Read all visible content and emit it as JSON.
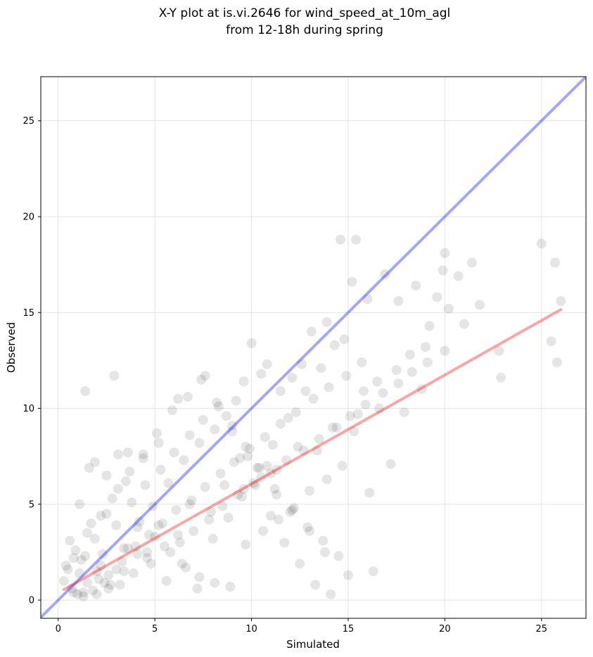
{
  "chart_data": {
    "type": "scatter",
    "title_line1": "X-Y plot at is.vi.2646 for wind_speed_at_10m_agl",
    "title_line2": "from 12-18h during spring",
    "xlabel": "Simulated",
    "ylabel": "Observed",
    "xlim": [
      -0.9,
      27.3
    ],
    "ylim": [
      -0.95,
      27.3
    ],
    "xticks": [
      0,
      5,
      10,
      15,
      20,
      25
    ],
    "yticks": [
      0,
      5,
      10,
      15,
      20,
      25
    ],
    "grid": true,
    "colors": {
      "points": "#000000",
      "identity_line": "#0000ee",
      "fit_line": "#ee0000"
    },
    "identity_line": {
      "x": [
        -0.9,
        27.3
      ],
      "y": [
        -0.9,
        27.3
      ]
    },
    "fit_line": {
      "x": [
        0.3,
        26.0
      ],
      "y": [
        0.55,
        15.15
      ]
    },
    "points": {
      "x": [
        1.4,
        2.9,
        14.6,
        15.4,
        25.0,
        25.7,
        26.0,
        25.5,
        25.8,
        20.0,
        19.9,
        20.7,
        21.4,
        21.0,
        15.2,
        16.0,
        16.9,
        17.6,
        18.5,
        19.6,
        19.2,
        19.0,
        20.2,
        22.8,
        22.9,
        21.8,
        18.2,
        17.5,
        16.5,
        15.8,
        13.9,
        14.8,
        13.1,
        12.6,
        12.1,
        11.5,
        10.5,
        10.8,
        9.6,
        9.2,
        10.0,
        7.6,
        6.2,
        5.2,
        4.4,
        3.6,
        3.1,
        2.5,
        1.9,
        1.6,
        1.1,
        0.8,
        0.5,
        0.3,
        0.7,
        1.3,
        2.1,
        2.7,
        3.4,
        4.1,
        4.8,
        5.5,
        6.3,
        7.0,
        7.8,
        8.5,
        9.3,
        10.1,
        11.0,
        11.8,
        12.7,
        13.5,
        14.4,
        15.1,
        15.9,
        16.8,
        17.6,
        18.3,
        19.1,
        20.0,
        0.4,
        0.9,
        1.5,
        2.2,
        2.8,
        3.5,
        4.2,
        5.0,
        5.8,
        6.6,
        7.3,
        8.1,
        8.9,
        9.7,
        10.6,
        11.4,
        12.2,
        13.0,
        13.9,
        14.7,
        1.0,
        1.8,
        2.6,
        3.3,
        4.0,
        4.7,
        5.4,
        6.1,
        6.9,
        7.6,
        8.4,
        9.1,
        9.9,
        10.7,
        11.5,
        12.3,
        13.2,
        14.0,
        14.9,
        15.7,
        1.2,
        2.0,
        2.4,
        3.0,
        3.8,
        4.5,
        5.3,
        6.0,
        6.8,
        7.5,
        8.3,
        9.0,
        9.8,
        10.5,
        11.3,
        12.0,
        12.9,
        13.7,
        14.5,
        16.3,
        0.6,
        1.7,
        2.3,
        3.2,
        3.9,
        4.6,
        5.6,
        6.4,
        7.2,
        8.0,
        8.8,
        9.5,
        10.3,
        11.1,
        11.9,
        12.8,
        13.6,
        14.3,
        15.5,
        17.2,
        1.1,
        1.4,
        1.9,
        2.5,
        3.1,
        3.7,
        4.4,
        5.1,
        5.9,
        6.7,
        7.4,
        8.2,
        9.0,
        9.7,
        10.4,
        11.2,
        12.1,
        13.0,
        13.8,
        15.0,
        0.8,
        1.3,
        2.0,
        2.6,
        3.4,
        4.1,
        4.9,
        5.7,
        6.5,
        7.3,
        8.1,
        8.7,
        9.4,
        10.2,
        11.0,
        11.7,
        12.5,
        13.3,
        14.1,
        16.1,
        2.2,
        3.6,
        5.2,
        6.8,
        8.6,
        10.8,
        12.4,
        14.2,
        16.6,
        18.8,
        1.5,
        3.0,
        4.6,
        6.2,
        7.9,
        9.6,
        11.3,
        13.4,
        15.3,
        17.9
      ],
      "y": [
        10.9,
        11.7,
        18.8,
        18.8,
        18.6,
        17.6,
        15.6,
        13.5,
        12.4,
        18.1,
        17.2,
        16.9,
        17.6,
        14.4,
        16.6,
        15.7,
        17.0,
        15.6,
        16.4,
        15.8,
        14.3,
        13.2,
        15.2,
        13.0,
        11.6,
        15.4,
        12.8,
        12.0,
        11.4,
        10.9,
        14.5,
        13.6,
        14.0,
        12.3,
        11.6,
        10.9,
        11.8,
        12.3,
        11.4,
        10.4,
        13.4,
        11.7,
        10.5,
        8.2,
        7.4,
        7.7,
        7.6,
        6.5,
        7.2,
        6.9,
        5.0,
        2.2,
        1.6,
        1.0,
        0.6,
        0.4,
        1.1,
        0.8,
        1.5,
        2.4,
        1.9,
        2.8,
        3.0,
        3.6,
        4.2,
        4.9,
        5.5,
        6.1,
        6.6,
        7.3,
        7.8,
        8.4,
        9.0,
        9.6,
        10.2,
        10.8,
        11.3,
        11.9,
        12.4,
        13.0,
        1.8,
        2.6,
        3.5,
        4.4,
        5.3,
        6.2,
        4.1,
        3.3,
        2.5,
        1.7,
        1.2,
        0.9,
        0.7,
        2.9,
        3.6,
        4.2,
        4.8,
        5.7,
        6.3,
        7.0,
        0.3,
        0.5,
        1.3,
        2.0,
        2.8,
        3.4,
        4.0,
        4.7,
        5.2,
        5.9,
        6.6,
        7.2,
        7.9,
        8.5,
        9.2,
        9.8,
        10.5,
        11.1,
        11.7,
        12.4,
        2.1,
        1.5,
        0.9,
        3.9,
        5.1,
        6.0,
        6.8,
        7.7,
        8.6,
        9.4,
        10.1,
        8.8,
        7.5,
        6.4,
        5.5,
        4.6,
        3.8,
        3.1,
        2.3,
        1.5,
        3.1,
        4.0,
        2.4,
        0.8,
        1.4,
        2.2,
        1.0,
        1.9,
        0.6,
        3.2,
        4.3,
        5.4,
        6.9,
        8.1,
        9.5,
        10.9,
        12.1,
        13.3,
        9.7,
        7.1,
        1.4,
        2.3,
        3.2,
        4.5,
        5.8,
        6.7,
        7.6,
        8.7,
        9.9,
        10.6,
        11.5,
        10.3,
        9.1,
        8.0,
        6.9,
        5.8,
        4.7,
        3.6,
        2.5,
        1.3,
        0.4,
        0.2,
        0.3,
        0.6,
        2.7,
        3.8,
        4.9,
        6.1,
        7.3,
        8.2,
        8.9,
        9.6,
        7.4,
        6.0,
        4.4,
        3.0,
        1.9,
        0.8,
        0.3,
        5.6,
        1.8,
        2.7,
        3.9,
        5.0,
        6.0,
        7.0,
        8.0,
        9.0,
        10.0,
        11.0,
        0.9,
        1.6,
        2.5,
        3.4,
        4.6,
        5.8,
        6.8,
        7.8,
        8.8,
        9.8
      ]
    }
  }
}
